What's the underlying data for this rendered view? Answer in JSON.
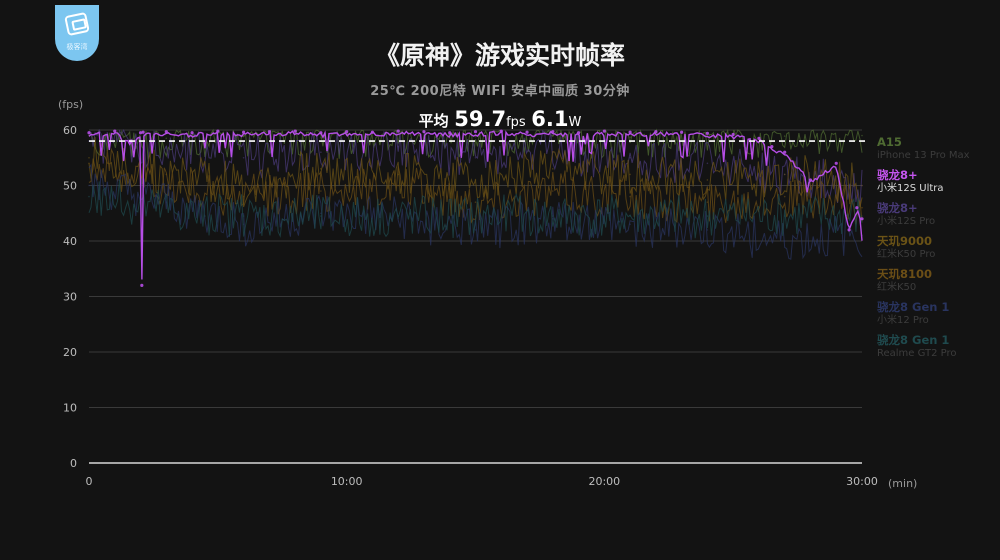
{
  "logo": {
    "text": "极客湾"
  },
  "header": {
    "title": "《原神》游戏实时帧率",
    "subtitle": "25℃ 200尼特 WIFI 安卓中画质 30分钟",
    "avg_label": "平均",
    "avg_fps": "59.7",
    "fps_unit": "fps",
    "avg_power": "6.1",
    "power_unit": "W"
  },
  "axis": {
    "y_unit": "(fps)",
    "x_unit": "(min)"
  },
  "legend": [
    {
      "name": "A15",
      "device": "iPhone 13 Pro Max",
      "color": "#4f6b32",
      "device_color": "#3c3c3c"
    },
    {
      "name": "骁龙8+",
      "device": "小米12S Ultra",
      "color": "#c455ee",
      "device_color": "#dddddd"
    },
    {
      "name": "骁龙8+",
      "device": "小米12S Pro",
      "color": "#493a78",
      "device_color": "#3c3c3c"
    },
    {
      "name": "天玑9000",
      "device": "红米K50 Pro",
      "color": "#6b5316",
      "device_color": "#3c3c3c"
    },
    {
      "name": "天玑8100",
      "device": "红米K50",
      "color": "#6b4e16",
      "device_color": "#3c3c3c"
    },
    {
      "name": "骁龙8 Gen 1",
      "device": "小米12 Pro",
      "color": "#29345f",
      "device_color": "#3c3c3c"
    },
    {
      "name": "骁龙8 Gen 1",
      "device": "Realme GT2 Pro",
      "color": "#1f4a4e",
      "device_color": "#3c3c3c"
    }
  ],
  "chart_data": {
    "type": "line",
    "title": "《原神》游戏实时帧率",
    "subtitle": "25℃ 200尼特 WIFI 安卓中画质 30分钟",
    "xlabel": "(min)",
    "ylabel": "(fps)",
    "xlim": [
      0,
      30
    ],
    "ylim": [
      0,
      60
    ],
    "x_ticks": [
      "0",
      "10:00",
      "20:00",
      "30:00"
    ],
    "y_ticks": [
      "0",
      "10",
      "20",
      "30",
      "40",
      "50",
      "60"
    ],
    "grid": true,
    "legend_position": "right",
    "average_line": 58,
    "highlighted_series": "骁龙8+ 小米12S Ultra",
    "series": [
      {
        "name": "骁龙8+ 小米12S Ultra",
        "color": "#b64ee6",
        "x": [
          0,
          1,
          1.6,
          2,
          2.05,
          2.1,
          3,
          4,
          5,
          6,
          7,
          8,
          9,
          10,
          11,
          12,
          13,
          14,
          15,
          16,
          17,
          18,
          19,
          20,
          21,
          22,
          23,
          24,
          25,
          26,
          26.5,
          27,
          28,
          29,
          29.5,
          29.8,
          30
        ],
        "y": [
          59.5,
          59.8,
          58,
          59.5,
          32,
          59.6,
          59.7,
          59.5,
          59.8,
          59.6,
          59.7,
          59.8,
          59.5,
          59.7,
          59.6,
          59.8,
          59.7,
          59.5,
          59.7,
          59.8,
          59.6,
          59.7,
          59.5,
          59.8,
          59.6,
          59.7,
          59.6,
          59.4,
          59.2,
          58.5,
          57,
          56,
          51,
          54,
          42,
          46,
          44
        ]
      },
      {
        "name": "A15 iPhone 13 Pro Max",
        "color": "#4f6b32",
        "x": [
          0,
          3,
          6,
          9,
          12,
          15,
          18,
          21,
          24,
          27,
          30
        ],
        "y": [
          59,
          58.5,
          59,
          58.6,
          59.2,
          58.8,
          59,
          58.7,
          59,
          58.9,
          59
        ]
      },
      {
        "name": "骁龙8+ 小米12S Pro",
        "color": "#493a78",
        "x": [
          0,
          3,
          6,
          9,
          12,
          15,
          18,
          21,
          24,
          27,
          30
        ],
        "y": [
          58,
          57,
          55,
          56,
          57,
          55,
          56,
          55,
          54,
          52,
          50
        ]
      },
      {
        "name": "天玑9000 红米K50 Pro",
        "color": "#6b5316",
        "x": [
          0,
          3,
          6,
          9,
          12,
          15,
          18,
          21,
          24,
          27,
          30
        ],
        "y": [
          55,
          52,
          50,
          53,
          52,
          51,
          53,
          52,
          51,
          52,
          50
        ]
      },
      {
        "name": "天玑8100 红米K50",
        "color": "#6b4e16",
        "x": [
          0,
          3,
          6,
          9,
          12,
          15,
          18,
          21,
          24,
          27,
          30
        ],
        "y": [
          54,
          50,
          48,
          49,
          50,
          47,
          49,
          48,
          47,
          48,
          46
        ]
      },
      {
        "name": "骁龙8 Gen 1 小米12 Pro",
        "color": "#29345f",
        "x": [
          0,
          3,
          6,
          9,
          12,
          15,
          18,
          21,
          24,
          27,
          30
        ],
        "y": [
          50,
          47,
          43,
          45,
          44,
          42,
          44,
          43,
          42,
          40,
          41
        ]
      },
      {
        "name": "骁龙8 Gen 1 Realme GT2 Pro",
        "color": "#1f4a4e",
        "x": [
          0,
          4.5,
          6,
          9,
          12,
          15,
          18,
          21,
          24,
          27,
          30
        ],
        "y": [
          48,
          44.5,
          44.5,
          44.5,
          44.5,
          44.5,
          44.5,
          44.5,
          44.5,
          44.5,
          44.5
        ]
      }
    ]
  }
}
